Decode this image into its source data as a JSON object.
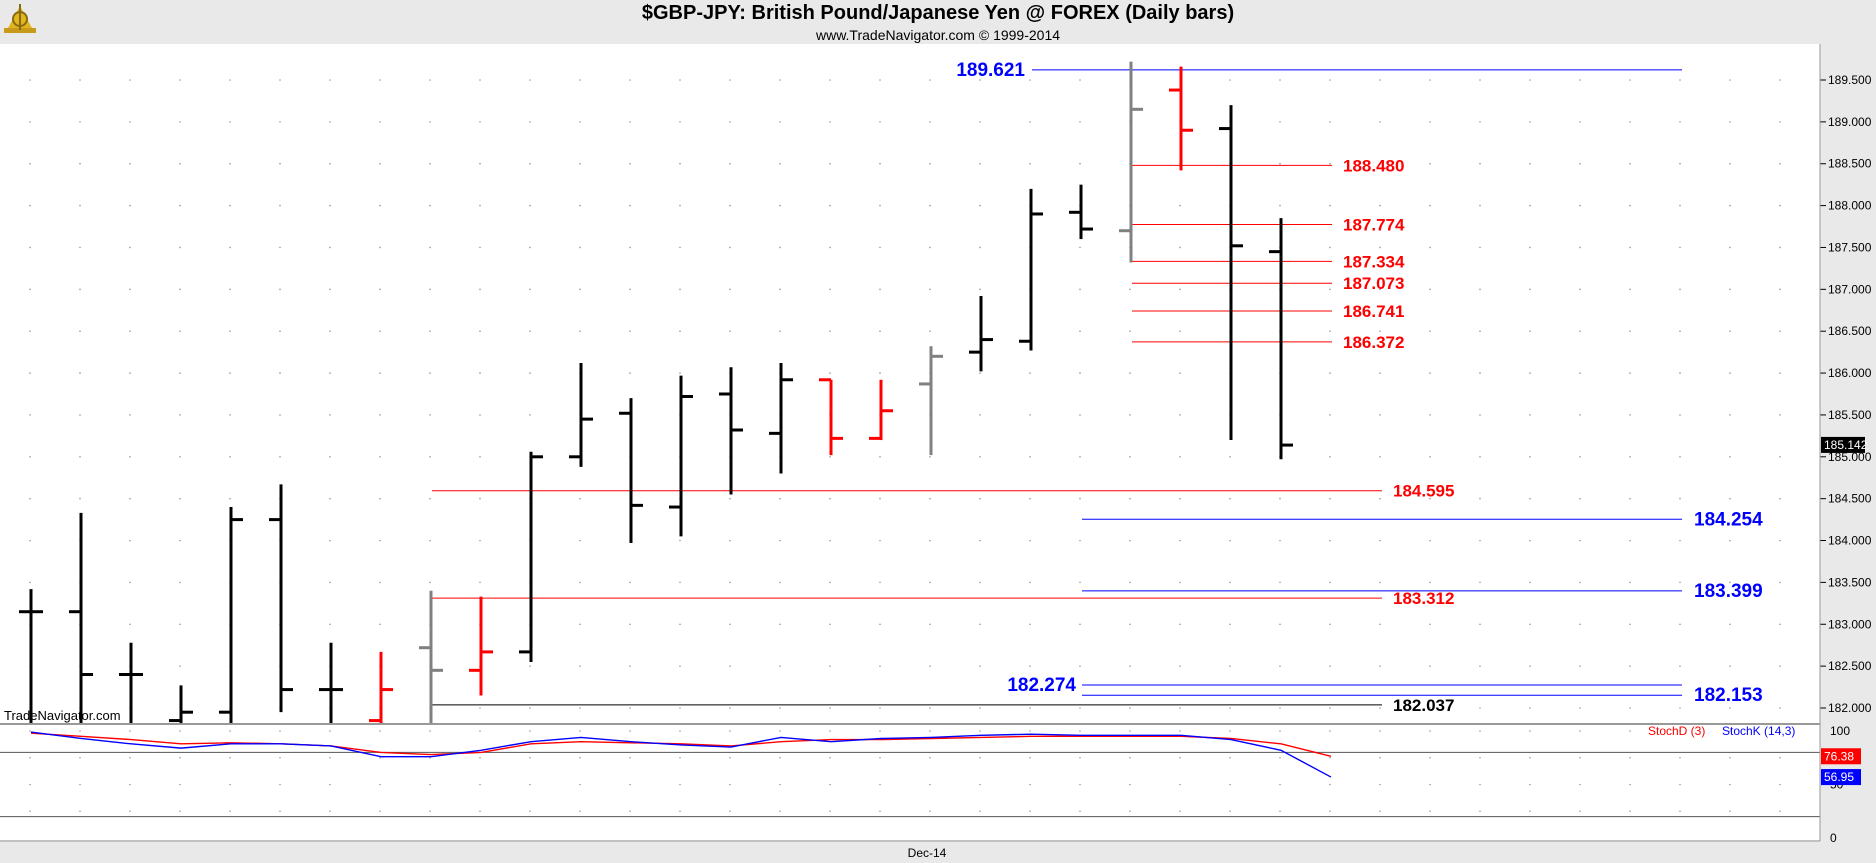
{
  "header": {
    "title": "$GBP-JPY:  British Pound/Japanese Yen @ FOREX  (Daily bars)",
    "subtitle": "www.TradeNavigator.com © 1999-2014",
    "watermark": "TradeNavigator.com"
  },
  "colors": {
    "background": "#ffffff",
    "frame": "#e9e9e9",
    "bar_black": "#000000",
    "bar_red": "#ff0000",
    "bar_gray": "#808080",
    "level_red": "#ff0000",
    "level_blue": "#0000ff",
    "level_black": "#000000",
    "stoch_d": "#ff0000",
    "stoch_k": "#0000ff"
  },
  "chart_data": [
    {
      "type": "ohlc",
      "ylim": [
        181.8,
        189.9
      ],
      "y_ticks": [
        "182.000",
        "182.500",
        "183.000",
        "183.500",
        "184.000",
        "184.500",
        "185.000",
        "185.500",
        "186.000",
        "186.500",
        "187.000",
        "187.500",
        "188.000",
        "188.500",
        "189.000",
        "189.500"
      ],
      "x_tick_label": "Dec-14",
      "last_price": "185.142",
      "bars": [
        {
          "o": 183.15,
          "h": 183.42,
          "l": 181.8,
          "c": 183.15,
          "color": "black"
        },
        {
          "o": 183.15,
          "h": 184.33,
          "l": 181.8,
          "c": 182.4,
          "color": "black"
        },
        {
          "o": 182.4,
          "h": 182.78,
          "l": 181.8,
          "c": 182.4,
          "color": "black"
        },
        {
          "o": 181.85,
          "h": 182.27,
          "l": 181.8,
          "c": 181.95,
          "color": "black"
        },
        {
          "o": 181.95,
          "h": 184.4,
          "l": 181.8,
          "c": 184.25,
          "color": "black"
        },
        {
          "o": 184.25,
          "h": 184.67,
          "l": 181.95,
          "c": 182.22,
          "color": "black"
        },
        {
          "o": 182.22,
          "h": 182.78,
          "l": 181.8,
          "c": 182.22,
          "color": "black"
        },
        {
          "o": 181.85,
          "h": 182.67,
          "l": 181.8,
          "c": 182.22,
          "color": "red"
        },
        {
          "o": 182.72,
          "h": 183.4,
          "l": 181.8,
          "c": 182.45,
          "color": "gray"
        },
        {
          "o": 182.45,
          "h": 183.33,
          "l": 182.15,
          "c": 182.67,
          "color": "red"
        },
        {
          "o": 182.67,
          "h": 185.06,
          "l": 182.55,
          "c": 185.0,
          "color": "black"
        },
        {
          "o": 185.0,
          "h": 186.12,
          "l": 184.88,
          "c": 185.45,
          "color": "black"
        },
        {
          "o": 185.52,
          "h": 185.7,
          "l": 183.97,
          "c": 184.42,
          "color": "black"
        },
        {
          "o": 184.4,
          "h": 185.97,
          "l": 184.05,
          "c": 185.72,
          "color": "black"
        },
        {
          "o": 185.75,
          "h": 186.07,
          "l": 184.55,
          "c": 185.32,
          "color": "black"
        },
        {
          "o": 185.28,
          "h": 186.12,
          "l": 184.8,
          "c": 185.92,
          "color": "black"
        },
        {
          "o": 185.92,
          "h": 185.92,
          "l": 185.02,
          "c": 185.22,
          "color": "red"
        },
        {
          "o": 185.22,
          "h": 185.92,
          "l": 185.2,
          "c": 185.55,
          "color": "red"
        },
        {
          "o": 185.87,
          "h": 186.32,
          "l": 185.02,
          "c": 186.2,
          "color": "gray"
        },
        {
          "o": 186.25,
          "h": 186.92,
          "l": 186.02,
          "c": 186.4,
          "color": "black"
        },
        {
          "o": 186.38,
          "h": 188.2,
          "l": 186.27,
          "c": 187.9,
          "color": "black"
        },
        {
          "o": 187.92,
          "h": 188.25,
          "l": 187.6,
          "c": 187.72,
          "color": "black"
        },
        {
          "o": 187.7,
          "h": 189.72,
          "l": 187.32,
          "c": 189.15,
          "color": "gray"
        },
        {
          "o": 189.38,
          "h": 189.66,
          "l": 188.42,
          "c": 188.9,
          "color": "red"
        },
        {
          "o": 188.92,
          "h": 189.2,
          "l": 185.2,
          "c": 187.52,
          "color": "black"
        },
        {
          "o": 187.45,
          "h": 187.85,
          "l": 184.97,
          "c": 185.14,
          "color": "black"
        }
      ],
      "levels": [
        {
          "value": 189.621,
          "label": "189.621",
          "color": "blue",
          "label_side": "left"
        },
        {
          "value": 188.48,
          "label": "188.480",
          "color": "red",
          "label_side": "right"
        },
        {
          "value": 187.774,
          "label": "187.774",
          "color": "red",
          "label_side": "right"
        },
        {
          "value": 187.334,
          "label": "187.334",
          "color": "red",
          "label_side": "right"
        },
        {
          "value": 187.073,
          "label": "187.073",
          "color": "red",
          "label_side": "right"
        },
        {
          "value": 186.741,
          "label": "186.741",
          "color": "red",
          "label_side": "right"
        },
        {
          "value": 186.372,
          "label": "186.372",
          "color": "red",
          "label_side": "right"
        },
        {
          "value": 184.595,
          "label": "184.595",
          "color": "red",
          "label_side": "right"
        },
        {
          "value": 184.254,
          "label": "184.254",
          "color": "blue",
          "label_side": "right"
        },
        {
          "value": 183.399,
          "label": "183.399",
          "color": "blue",
          "label_side": "right"
        },
        {
          "value": 183.312,
          "label": "183.312",
          "color": "red",
          "label_side": "right"
        },
        {
          "value": 182.274,
          "label": "182.274",
          "color": "blue",
          "label_side": "left"
        },
        {
          "value": 182.153,
          "label": "182.153",
          "color": "blue",
          "label_side": "right"
        },
        {
          "value": 182.037,
          "label": "182.037",
          "color": "black",
          "label_side": "right"
        }
      ]
    },
    {
      "type": "line",
      "ylim": [
        0,
        100
      ],
      "y_ticks": [
        "100",
        "50",
        "0"
      ],
      "series": [
        {
          "name": "StochD (3)",
          "color": "red",
          "last_label": "76.38",
          "values": [
            98,
            95,
            92,
            88,
            89,
            88,
            86,
            80,
            78,
            80,
            88,
            90,
            89,
            88,
            86,
            90,
            92,
            92,
            93,
            94,
            95,
            95,
            95,
            95,
            93,
            88,
            76.38
          ]
        },
        {
          "name": "StochK (14,3)",
          "color": "blue",
          "last_label": "56.95",
          "values": [
            99,
            93,
            88,
            84,
            88,
            88,
            86,
            76,
            76,
            82,
            90,
            94,
            90,
            87,
            85,
            94,
            90,
            93,
            94,
            96,
            97,
            96,
            96,
            96,
            92,
            82,
            56.95
          ]
        }
      ]
    }
  ]
}
